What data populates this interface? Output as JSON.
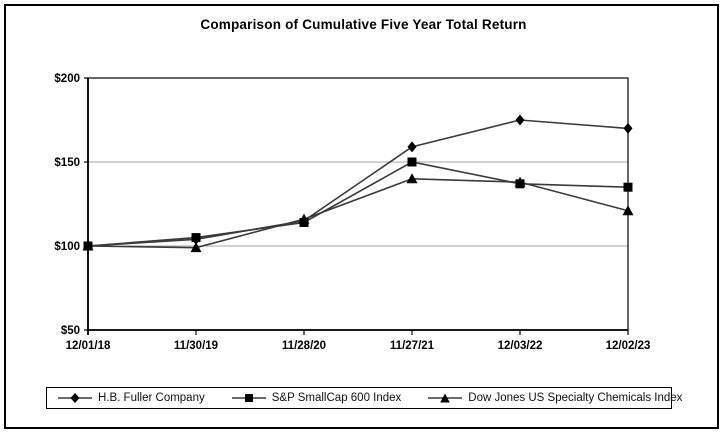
{
  "chart_data": {
    "type": "line",
    "title": "Comparison of Cumulative Five Year Total Return",
    "xlabel": "",
    "ylabel": "",
    "x_labels": [
      "12/01/18",
      "11/30/19",
      "11/28/20",
      "11/27/21",
      "12/03/22",
      "12/02/23"
    ],
    "y_ticks": [
      50,
      100,
      150,
      200
    ],
    "y_tick_labels": [
      "$50",
      "$100",
      "$150",
      "$200"
    ],
    "ylim": [
      50,
      200
    ],
    "gridlines_at": [
      100,
      150
    ],
    "grid": true,
    "legend_position": "bottom",
    "series": [
      {
        "name": "H.B. Fuller Company",
        "marker": "diamond",
        "values": [
          100,
          104,
          115,
          159,
          175,
          170
        ]
      },
      {
        "name": "S&P SmallCap 600 Index",
        "marker": "square",
        "values": [
          100,
          105,
          114,
          150,
          137,
          135
        ]
      },
      {
        "name": "Dow Jones US Specialty Chemicals Index",
        "marker": "triangle",
        "values": [
          100,
          99,
          116,
          140,
          138,
          121
        ]
      }
    ],
    "colors": {
      "line": "#3a3a3a",
      "marker": "#000000",
      "gridline": "#a6a6a6",
      "axis": "#000000",
      "text": "#000000",
      "background": "#ffffff"
    }
  }
}
